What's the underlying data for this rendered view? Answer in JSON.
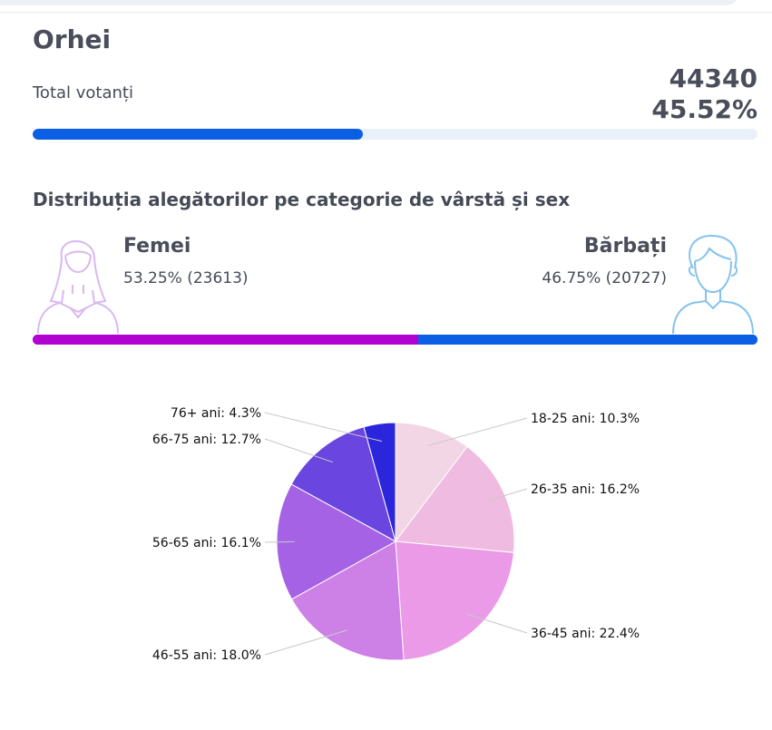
{
  "region": {
    "title": "Orhei"
  },
  "turnout": {
    "label": "Total votanți",
    "count": "44340",
    "percent_text": "45.52%",
    "percent_value": 45.52,
    "bar_fill_color": "#0b5fe4",
    "bar_track_color": "#e9f0f8"
  },
  "distribution": {
    "title": "Distribuția alegătorilor pe categorie de vârstă și sex",
    "female": {
      "label": "Femei",
      "stat": "53.25% (23613)",
      "share": 53.25,
      "color": "#b202d2",
      "icon": "female-avatar-icon"
    },
    "male": {
      "label": "Bărbați",
      "stat": "46.75% (20727)",
      "share": 46.75,
      "color": "#0b5fe4",
      "icon": "male-avatar-icon"
    }
  },
  "chart_data": {
    "type": "pie",
    "categories": [
      "18-25 ani",
      "26-35 ani",
      "36-45 ani",
      "46-55 ani",
      "56-65 ani",
      "66-75 ani",
      "76+ ani"
    ],
    "values": [
      10.3,
      16.2,
      22.4,
      18.0,
      16.1,
      12.7,
      4.3
    ],
    "labels": [
      "18-25 ani: 10.3%",
      "26-35 ani: 16.2%",
      "36-45 ani: 22.4%",
      "46-55 ani: 18.0%",
      "56-65 ani: 16.1%",
      "66-75 ani: 12.7%",
      "76+ ani: 4.3%"
    ],
    "colors": [
      "#f3d6e6",
      "#f0bbe0",
      "#ea9ae7",
      "#cd80e6",
      "#a662e4",
      "#6a45df",
      "#2b26dc"
    ],
    "start_angle_deg": 0,
    "direction": "clockwise"
  }
}
